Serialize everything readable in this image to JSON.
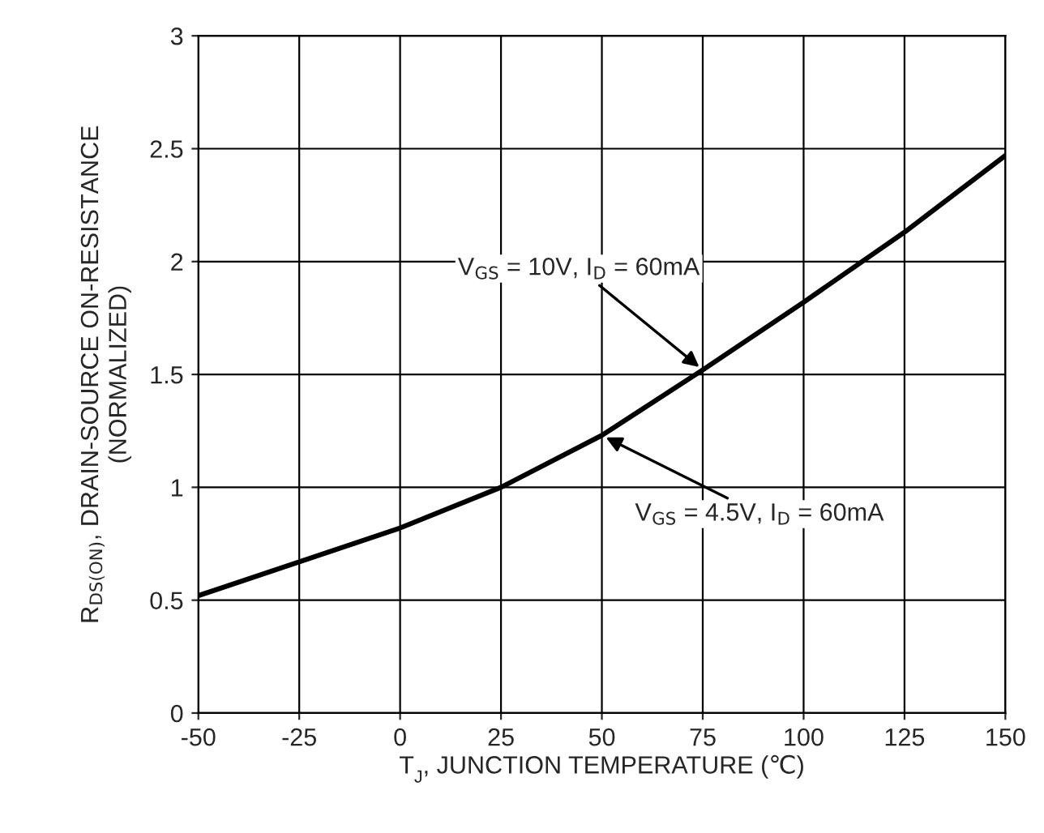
{
  "chart_data": {
    "type": "line",
    "xlabel": "T$_{J}$, JUNCTION TEMPERATURE (℃)",
    "ylabel": "R$_{DS(ON)}$, DRAIN-SOURCE ON-RESISTANCE\n(NORMALIZED)",
    "x": [
      -50,
      -25,
      0,
      25,
      50,
      75,
      100,
      125,
      150
    ],
    "series": [
      {
        "color": "#000000",
        "values": [
          0.52,
          0.67,
          0.82,
          1.0,
          1.23,
          1.52,
          1.82,
          2.13,
          2.47
        ]
      }
    ],
    "xlim": [
      -50,
      150
    ],
    "xticks": [
      -50,
      -25,
      0,
      25,
      50,
      75,
      100,
      125,
      150
    ],
    "ylim": [
      0,
      3
    ],
    "yticks": [
      0,
      0.5,
      1,
      1.5,
      2,
      2.5,
      3
    ],
    "grid": true,
    "marker": "none",
    "line_style": "solid",
    "annotations": [
      {
        "text": "V$_{GS}$ = 10V, I$_{D}$ = 60mA",
        "x": 75,
        "y": 1.52
      },
      {
        "text": "V$_{GS}$ = 4.5V, I$_{D}$ = 60mA",
        "x": 50,
        "y": 1.23
      }
    ]
  }
}
